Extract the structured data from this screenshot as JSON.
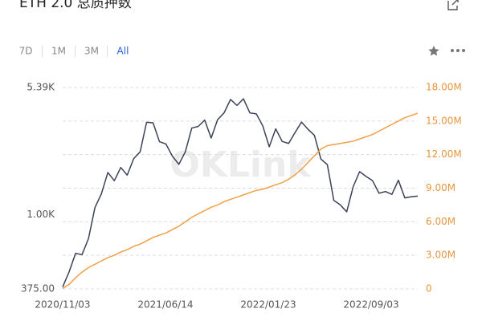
{
  "header": {
    "title": "ETH 2.0 总质押数",
    "tabs": [
      "7D",
      "1M",
      "3M",
      "All"
    ],
    "selected_tab": 3
  },
  "chart_data": {
    "type": "line",
    "watermark": "OKLink",
    "x": [
      "2020/11/03",
      "2020/11/17",
      "2020/12/01",
      "2020/12/15",
      "2020/12/29",
      "2021/01/12",
      "2021/01/26",
      "2021/02/09",
      "2021/02/23",
      "2021/03/09",
      "2021/03/23",
      "2021/04/06",
      "2021/04/20",
      "2021/05/04",
      "2021/05/18",
      "2021/06/01",
      "2021/06/15",
      "2021/06/29",
      "2021/07/13",
      "2021/07/27",
      "2021/08/10",
      "2021/08/24",
      "2021/09/07",
      "2021/09/21",
      "2021/10/05",
      "2021/10/19",
      "2021/11/02",
      "2021/11/16",
      "2021/11/30",
      "2021/12/14",
      "2021/12/28",
      "2022/01/11",
      "2022/01/25",
      "2022/02/08",
      "2022/02/22",
      "2022/03/08",
      "2022/03/22",
      "2022/04/05",
      "2022/04/19",
      "2022/05/03",
      "2022/05/17",
      "2022/05/31",
      "2022/06/14",
      "2022/06/28",
      "2022/07/12",
      "2022/07/26",
      "2022/08/09",
      "2022/08/23",
      "2022/09/06",
      "2022/09/20",
      "2022/10/04",
      "2022/10/18",
      "2022/11/01",
      "2022/11/15",
      "2022/11/29",
      "2022/12/13"
    ],
    "xticks": [
      "2020/11/03",
      "2021/06/14",
      "2022/01/23",
      "2022/09/03"
    ],
    "ylim": [
      375,
      5390
    ],
    "log_y": true,
    "yticks": [
      {
        "value": 375,
        "label": "375.00"
      },
      {
        "value": 1000,
        "label": "1.00K"
      },
      {
        "value": 5390,
        "label": "5.39K"
      }
    ],
    "y2lim": [
      0,
      18
    ],
    "y2ticks": [
      0,
      {
        "value": 3,
        "label": "3.00M"
      },
      {
        "value": 6,
        "label": "6.00M"
      },
      {
        "value": 9,
        "label": "9.00M"
      },
      {
        "value": 12,
        "label": "12.00M"
      },
      {
        "value": 15,
        "label": "15.00M"
      },
      {
        "value": 18,
        "label": "18.00M"
      }
    ],
    "grid": true,
    "series": [
      {
        "color": "#3b4256",
        "values": [
          385,
          470,
          600,
          590,
          730,
          1100,
          1320,
          1750,
          1570,
          1870,
          1690,
          2100,
          2300,
          3400,
          3380,
          2630,
          2550,
          2170,
          1950,
          2300,
          3150,
          3220,
          3500,
          2760,
          3520,
          3850,
          4600,
          4250,
          4640,
          3850,
          3800,
          3240,
          2460,
          3120,
          2640,
          2570,
          2970,
          3410,
          3100,
          2860,
          2090,
          1940,
          1210,
          1140,
          1040,
          1450,
          1770,
          1660,
          1570,
          1330,
          1360,
          1310,
          1580,
          1250,
          1270,
          1280
        ]
      },
      {
        "color": "#f0a048",
        "axis": "y2",
        "values": [
          0.05,
          0.4,
          1.0,
          1.5,
          1.9,
          2.2,
          2.5,
          2.8,
          3.0,
          3.3,
          3.5,
          3.8,
          4.0,
          4.3,
          4.6,
          4.8,
          5.0,
          5.3,
          5.6,
          6.0,
          6.4,
          6.7,
          7.0,
          7.3,
          7.5,
          7.8,
          8.0,
          8.2,
          8.4,
          8.6,
          8.8,
          8.9,
          9.1,
          9.3,
          9.5,
          9.8,
          10.2,
          10.7,
          11.3,
          11.9,
          12.5,
          12.8,
          12.9,
          13.0,
          13.1,
          13.2,
          13.4,
          13.6,
          13.8,
          14.1,
          14.4,
          14.7,
          15.0,
          15.3,
          15.5,
          15.7
        ]
      }
    ]
  }
}
